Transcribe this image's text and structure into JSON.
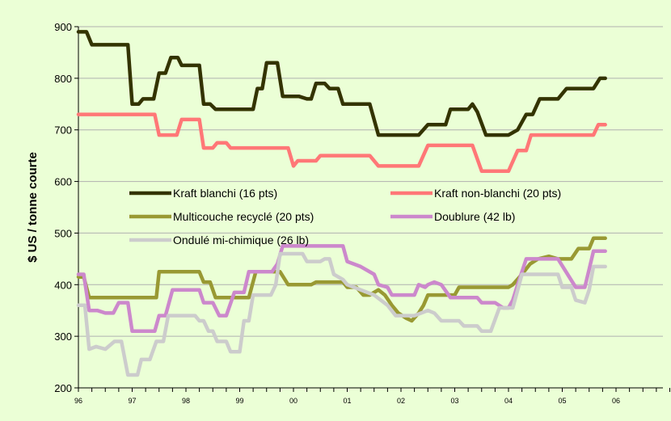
{
  "chart_data": {
    "type": "line",
    "ylabel": "$ US / tonne courte",
    "xlabel": "",
    "ylim": [
      200,
      900
    ],
    "xlim": [
      1996,
      2007.5
    ],
    "yticks": [
      200,
      300,
      400,
      500,
      600,
      700,
      800,
      900
    ],
    "xticks": [
      "96",
      "97",
      "98",
      "99",
      "00",
      "01",
      "02",
      "03",
      "04",
      "05",
      "06"
    ],
    "grid": "horizontal",
    "legend_placement": "middle",
    "series": [
      {
        "name": "Kraft blanchi (16 pts)",
        "color": "#333300",
        "points": [
          [
            1996.0,
            890
          ],
          [
            1996.15,
            890
          ],
          [
            1996.25,
            865
          ],
          [
            1996.92,
            865
          ],
          [
            1997.0,
            750
          ],
          [
            1997.12,
            750
          ],
          [
            1997.2,
            760
          ],
          [
            1997.4,
            760
          ],
          [
            1997.5,
            810
          ],
          [
            1997.62,
            810
          ],
          [
            1997.72,
            840
          ],
          [
            1997.85,
            840
          ],
          [
            1997.92,
            825
          ],
          [
            1998.25,
            825
          ],
          [
            1998.33,
            750
          ],
          [
            1998.45,
            750
          ],
          [
            1998.55,
            740
          ],
          [
            1999.25,
            740
          ],
          [
            1999.33,
            780
          ],
          [
            1999.42,
            780
          ],
          [
            1999.5,
            830
          ],
          [
            1999.7,
            830
          ],
          [
            1999.8,
            765
          ],
          [
            2000.1,
            765
          ],
          [
            2000.25,
            760
          ],
          [
            2000.33,
            760
          ],
          [
            2000.42,
            790
          ],
          [
            2000.58,
            790
          ],
          [
            2000.67,
            780
          ],
          [
            2000.83,
            780
          ],
          [
            2000.92,
            750
          ],
          [
            2001.42,
            750
          ],
          [
            2001.58,
            690
          ],
          [
            2002.33,
            690
          ],
          [
            2002.5,
            710
          ],
          [
            2002.83,
            710
          ],
          [
            2002.92,
            740
          ],
          [
            2003.25,
            740
          ],
          [
            2003.33,
            750
          ],
          [
            2003.42,
            735
          ],
          [
            2003.58,
            690
          ],
          [
            2004.0,
            690
          ],
          [
            2004.17,
            700
          ],
          [
            2004.33,
            730
          ],
          [
            2004.45,
            730
          ],
          [
            2004.58,
            760
          ],
          [
            2004.92,
            760
          ],
          [
            2005.08,
            780
          ],
          [
            2005.58,
            780
          ],
          [
            2005.7,
            800
          ],
          [
            2005.8,
            800
          ]
        ]
      },
      {
        "name": "Kraft non-blanchi (20 pts)",
        "color": "#ff7777",
        "points": [
          [
            1996.0,
            730
          ],
          [
            1997.42,
            730
          ],
          [
            1997.5,
            690
          ],
          [
            1997.83,
            690
          ],
          [
            1997.92,
            720
          ],
          [
            1998.25,
            720
          ],
          [
            1998.33,
            665
          ],
          [
            1998.5,
            665
          ],
          [
            1998.58,
            675
          ],
          [
            1998.75,
            675
          ],
          [
            1998.83,
            665
          ],
          [
            1999.9,
            665
          ],
          [
            2000.0,
            630
          ],
          [
            2000.08,
            640
          ],
          [
            2000.42,
            640
          ],
          [
            2000.5,
            650
          ],
          [
            2001.42,
            650
          ],
          [
            2001.58,
            630
          ],
          [
            2002.33,
            630
          ],
          [
            2002.5,
            670
          ],
          [
            2003.33,
            670
          ],
          [
            2003.5,
            620
          ],
          [
            2004.0,
            620
          ],
          [
            2004.17,
            660
          ],
          [
            2004.33,
            660
          ],
          [
            2004.42,
            690
          ],
          [
            2005.58,
            690
          ],
          [
            2005.67,
            710
          ],
          [
            2005.8,
            710
          ]
        ]
      },
      {
        "name": "Multicouche recyclé (20 pts)",
        "color": "#999933",
        "points": [
          [
            1996.0,
            415
          ],
          [
            1996.1,
            415
          ],
          [
            1996.2,
            375
          ],
          [
            1997.45,
            375
          ],
          [
            1997.5,
            425
          ],
          [
            1998.25,
            425
          ],
          [
            1998.33,
            405
          ],
          [
            1998.45,
            405
          ],
          [
            1998.55,
            375
          ],
          [
            1999.17,
            375
          ],
          [
            1999.3,
            425
          ],
          [
            1999.75,
            425
          ],
          [
            1999.9,
            400
          ],
          [
            2000.33,
            400
          ],
          [
            2000.42,
            405
          ],
          [
            2000.92,
            405
          ],
          [
            2001.0,
            395
          ],
          [
            2001.17,
            395
          ],
          [
            2001.3,
            380
          ],
          [
            2001.42,
            380
          ],
          [
            2001.58,
            390
          ],
          [
            2001.7,
            380
          ],
          [
            2001.83,
            360
          ],
          [
            2001.95,
            345
          ],
          [
            2002.1,
            335
          ],
          [
            2002.2,
            330
          ],
          [
            2002.33,
            345
          ],
          [
            2002.42,
            360
          ],
          [
            2002.5,
            380
          ],
          [
            2003.0,
            380
          ],
          [
            2003.08,
            395
          ],
          [
            2004.0,
            395
          ],
          [
            2004.08,
            400
          ],
          [
            2004.25,
            420
          ],
          [
            2004.4,
            440
          ],
          [
            2004.55,
            450
          ],
          [
            2004.75,
            455
          ],
          [
            2004.92,
            450
          ],
          [
            2005.17,
            450
          ],
          [
            2005.3,
            470
          ],
          [
            2005.5,
            470
          ],
          [
            2005.58,
            490
          ],
          [
            2005.8,
            490
          ]
        ]
      },
      {
        "name": "Doublure (42 lb)",
        "color": "#cc88cc",
        "points": [
          [
            1996.0,
            420
          ],
          [
            1996.1,
            420
          ],
          [
            1996.2,
            350
          ],
          [
            1996.35,
            350
          ],
          [
            1996.5,
            345
          ],
          [
            1996.65,
            345
          ],
          [
            1996.75,
            365
          ],
          [
            1996.92,
            365
          ],
          [
            1997.0,
            310
          ],
          [
            1997.42,
            310
          ],
          [
            1997.5,
            340
          ],
          [
            1997.62,
            340
          ],
          [
            1997.75,
            390
          ],
          [
            1998.25,
            390
          ],
          [
            1998.33,
            365
          ],
          [
            1998.5,
            365
          ],
          [
            1998.62,
            340
          ],
          [
            1998.75,
            340
          ],
          [
            1998.9,
            385
          ],
          [
            1999.08,
            385
          ],
          [
            1999.17,
            425
          ],
          [
            1999.6,
            425
          ],
          [
            1999.7,
            440
          ],
          [
            1999.8,
            475
          ],
          [
            2000.92,
            475
          ],
          [
            2001.0,
            445
          ],
          [
            2001.25,
            435
          ],
          [
            2001.5,
            420
          ],
          [
            2001.58,
            400
          ],
          [
            2001.75,
            395
          ],
          [
            2001.83,
            380
          ],
          [
            2002.25,
            380
          ],
          [
            2002.33,
            400
          ],
          [
            2002.45,
            395
          ],
          [
            2002.5,
            400
          ],
          [
            2002.62,
            405
          ],
          [
            2002.75,
            400
          ],
          [
            2002.92,
            375
          ],
          [
            2003.42,
            375
          ],
          [
            2003.5,
            365
          ],
          [
            2003.75,
            365
          ],
          [
            2003.9,
            355
          ],
          [
            2004.0,
            355
          ],
          [
            2004.08,
            370
          ],
          [
            2004.17,
            400
          ],
          [
            2004.33,
            450
          ],
          [
            2004.92,
            450
          ],
          [
            2005.1,
            420
          ],
          [
            2005.25,
            395
          ],
          [
            2005.42,
            395
          ],
          [
            2005.5,
            430
          ],
          [
            2005.58,
            465
          ],
          [
            2005.8,
            465
          ]
        ]
      },
      {
        "name": "Ondulé mi-chimique (26 lb)",
        "color": "#cccccc",
        "points": [
          [
            1996.0,
            360
          ],
          [
            1996.12,
            360
          ],
          [
            1996.2,
            275
          ],
          [
            1996.33,
            280
          ],
          [
            1996.5,
            275
          ],
          [
            1996.67,
            290
          ],
          [
            1996.8,
            290
          ],
          [
            1996.92,
            225
          ],
          [
            1997.1,
            225
          ],
          [
            1997.17,
            255
          ],
          [
            1997.33,
            255
          ],
          [
            1997.45,
            290
          ],
          [
            1997.58,
            290
          ],
          [
            1997.67,
            340
          ],
          [
            1998.17,
            340
          ],
          [
            1998.25,
            330
          ],
          [
            1998.33,
            330
          ],
          [
            1998.42,
            310
          ],
          [
            1998.5,
            310
          ],
          [
            1998.58,
            290
          ],
          [
            1998.75,
            290
          ],
          [
            1998.83,
            270
          ],
          [
            1999.0,
            270
          ],
          [
            1999.08,
            330
          ],
          [
            1999.17,
            330
          ],
          [
            1999.25,
            380
          ],
          [
            1999.58,
            380
          ],
          [
            1999.67,
            400
          ],
          [
            1999.75,
            460
          ],
          [
            2000.17,
            460
          ],
          [
            2000.25,
            445
          ],
          [
            2000.5,
            445
          ],
          [
            2000.58,
            450
          ],
          [
            2000.67,
            450
          ],
          [
            2000.75,
            420
          ],
          [
            2000.92,
            410
          ],
          [
            2001.0,
            400
          ],
          [
            2001.5,
            380
          ],
          [
            2001.75,
            360
          ],
          [
            2001.9,
            340
          ],
          [
            2002.25,
            340
          ],
          [
            2002.5,
            350
          ],
          [
            2002.62,
            345
          ],
          [
            2002.75,
            330
          ],
          [
            2003.08,
            330
          ],
          [
            2003.17,
            320
          ],
          [
            2003.42,
            320
          ],
          [
            2003.5,
            310
          ],
          [
            2003.67,
            310
          ],
          [
            2003.83,
            355
          ],
          [
            2004.08,
            355
          ],
          [
            2004.25,
            420
          ],
          [
            2004.92,
            420
          ],
          [
            2005.0,
            395
          ],
          [
            2005.17,
            395
          ],
          [
            2005.25,
            370
          ],
          [
            2005.42,
            365
          ],
          [
            2005.5,
            390
          ],
          [
            2005.58,
            435
          ],
          [
            2005.8,
            435
          ]
        ]
      }
    ]
  }
}
